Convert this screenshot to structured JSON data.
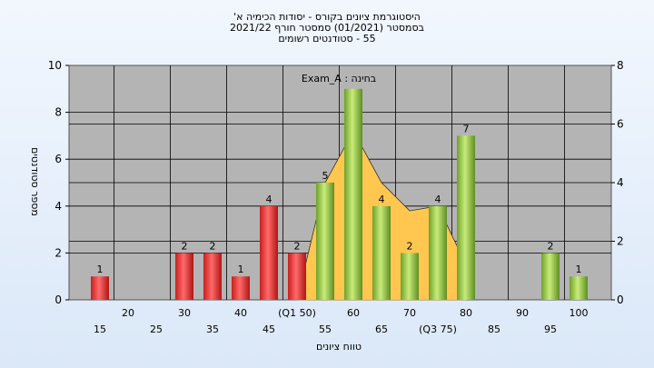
{
  "chart_data": {
    "type": "bar",
    "title_lines": [
      "היסטוגרמת ציונים בקורס - יסודות הכימיה א'",
      "בסמסטר  (01/2021)  סמסטר חורף  2021/22",
      "55 - סטודנטים רשומים"
    ],
    "annotation": "Exam_A : בחינה",
    "xlabel": "טווח ציונים",
    "ylabel": "מספר סטודנטים",
    "ylim": [
      0,
      10
    ],
    "y_ticks": [
      "0",
      "2",
      "4",
      "6",
      "8",
      "10"
    ],
    "y2lim": [
      0,
      8
    ],
    "y2_ticks": [
      "0",
      "2",
      "4",
      "6",
      "8"
    ],
    "categories": [
      "15",
      "20",
      "25",
      "30",
      "35",
      "40",
      "45",
      "(Q1 50)",
      "55",
      "60",
      "65",
      "70",
      "(Q3 75)",
      "80",
      "85",
      "90",
      "95",
      "100"
    ],
    "values": [
      1,
      0,
      0,
      2,
      2,
      1,
      4,
      2,
      5,
      9,
      4,
      2,
      4,
      7,
      0,
      0,
      2,
      1
    ],
    "bar_labels": [
      "1",
      "",
      "",
      "2",
      "2",
      "1",
      "4",
      "2",
      "5",
      "",
      "4",
      "2",
      "4",
      "7",
      "",
      "",
      "2",
      "1"
    ],
    "bar_groups": [
      "red",
      "none",
      "none",
      "red",
      "red",
      "red",
      "red",
      "red",
      "green",
      "green",
      "green",
      "green",
      "green",
      "green",
      "none",
      "none",
      "green",
      "green"
    ],
    "area_series": {
      "x": [
        "(Q1 50)",
        "55",
        "60",
        "65",
        "70",
        "(Q3 75)",
        "80"
      ],
      "values": [
        0,
        5,
        7.2,
        5,
        3.8,
        4,
        1.5
      ]
    },
    "colors": {
      "red": "#e23a3a",
      "green": "#9fcf4a",
      "area": "#ffc74f",
      "plot_background": "#b4b4b4",
      "outer_background": "#dbe8f8"
    },
    "grid": true
  }
}
